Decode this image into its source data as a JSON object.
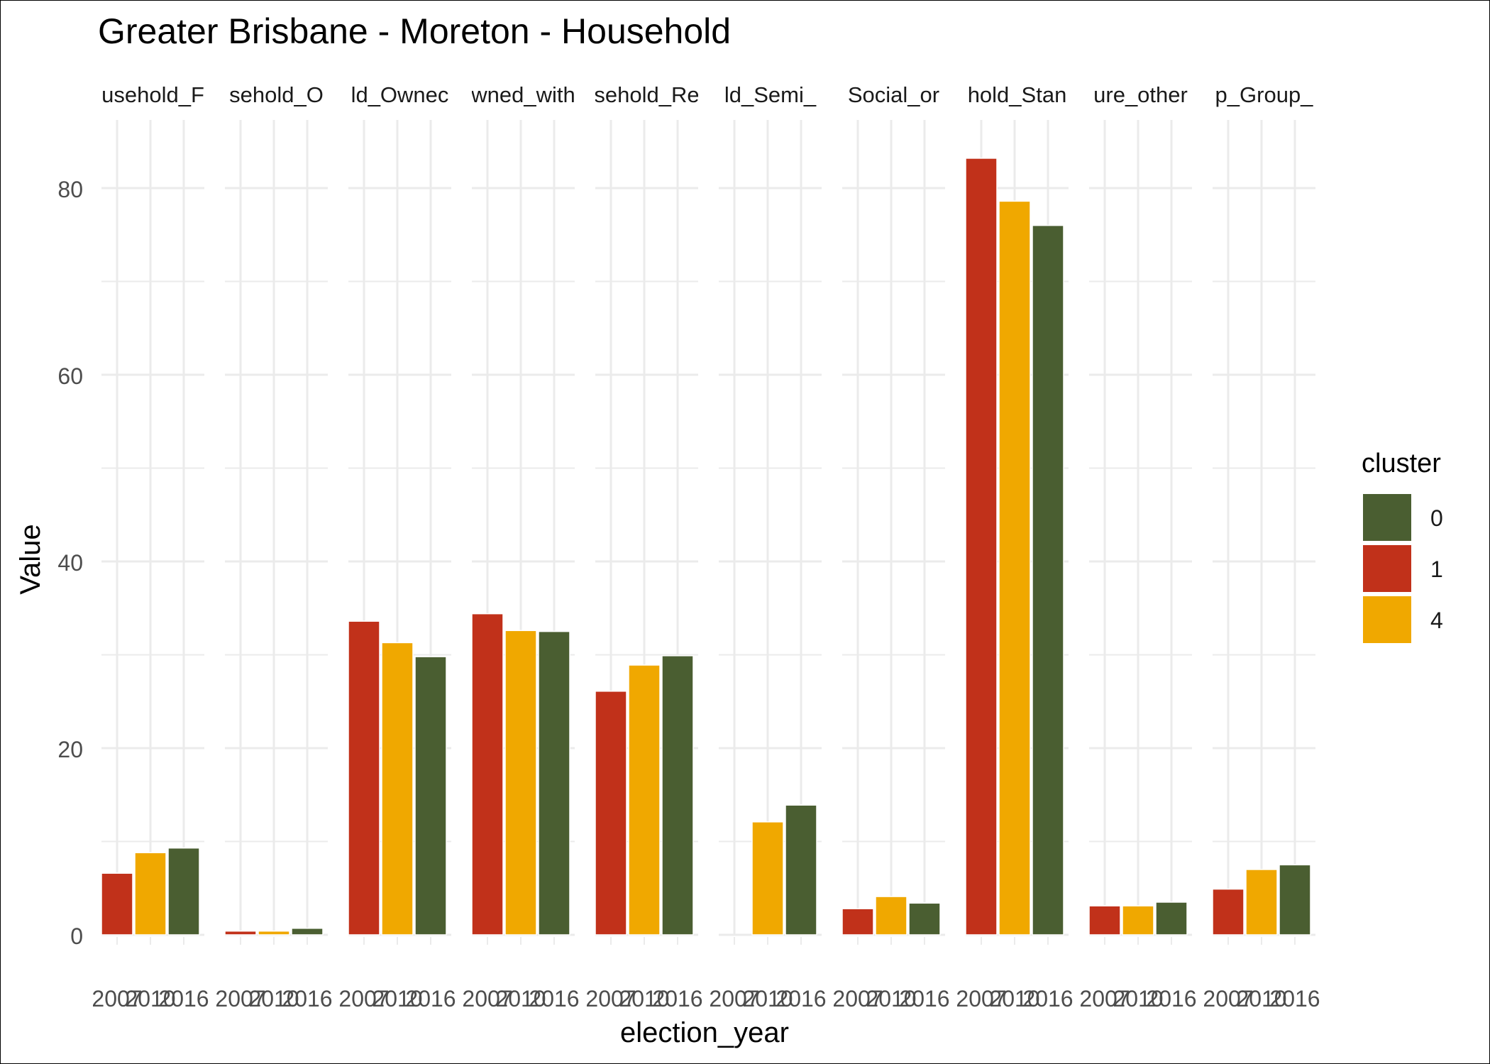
{
  "chart_data": {
    "type": "bar",
    "title": "Greater Brisbane - Moreton - Household",
    "xlabel": "election_year",
    "ylabel": "Value",
    "ylim": [
      0,
      87
    ],
    "y_ticks": [
      0,
      20,
      40,
      60,
      80
    ],
    "grid": true,
    "legend": {
      "title": "cluster",
      "placement": "right",
      "entries": [
        {
          "label": "0",
          "color": "#4A5E31"
        },
        {
          "label": "1",
          "color": "#C1311A"
        },
        {
          "label": "4",
          "color": "#F0A800"
        }
      ]
    },
    "categories": [
      "2007",
      "2010",
      "2016"
    ],
    "bar_colors": [
      "#C1311A",
      "#F0A800",
      "#4A5E31"
    ],
    "facets": [
      {
        "label": "usehold_F",
        "values": [
          6.6,
          8.8,
          9.3
        ]
      },
      {
        "label": "sehold_O",
        "values": [
          0.4,
          0.4,
          0.7
        ]
      },
      {
        "label": "ld_Ownec",
        "values": [
          33.6,
          31.3,
          29.8
        ]
      },
      {
        "label": "wned_with",
        "values": [
          34.4,
          32.6,
          32.5
        ]
      },
      {
        "label": "sehold_Re",
        "values": [
          26.1,
          28.9,
          29.9
        ]
      },
      {
        "label": "ld_Semi_",
        "values": [
          null,
          12.1,
          13.9
        ]
      },
      {
        "label": "Social_or",
        "values": [
          2.8,
          4.1,
          3.4
        ]
      },
      {
        "label": "hold_Stan",
        "values": [
          83.2,
          78.6,
          76.0
        ]
      },
      {
        "label": "ure_other",
        "values": [
          3.1,
          3.1,
          3.5
        ]
      },
      {
        "label": "p_Group_",
        "values": [
          4.9,
          7.0,
          7.5
        ]
      }
    ]
  }
}
